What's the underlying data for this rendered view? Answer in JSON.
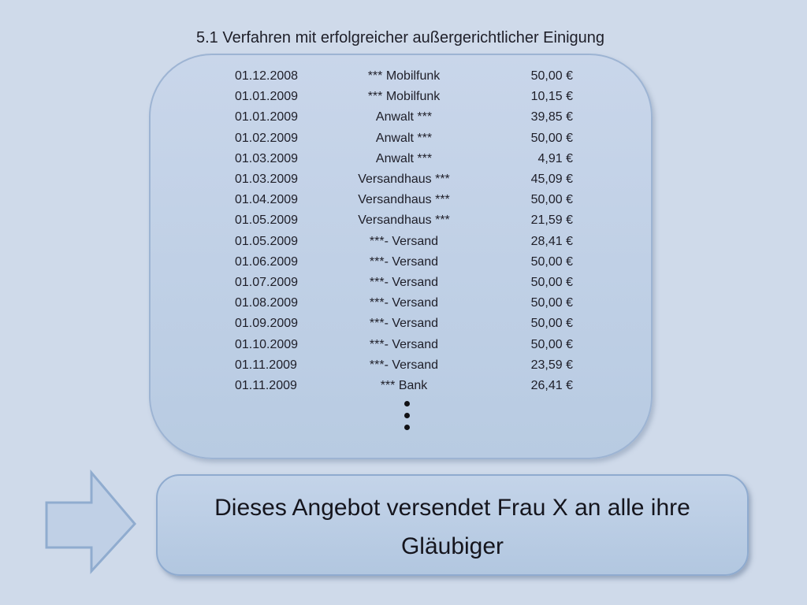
{
  "slide_title": "5.1 Verfahren mit erfolgreicher außergerichtlicher Einigung",
  "payments_box": {
    "rows": [
      {
        "date": "01.12.2008",
        "creditor": "*** Mobilfunk",
        "amount": "50,00 €"
      },
      {
        "date": "01.01.2009",
        "creditor": "*** Mobilfunk",
        "amount": "10,15 €"
      },
      {
        "date": "01.01.2009",
        "creditor": "Anwalt ***",
        "amount": "39,85 €"
      },
      {
        "date": "01.02.2009",
        "creditor": "Anwalt ***",
        "amount": "50,00 €"
      },
      {
        "date": "01.03.2009",
        "creditor": "Anwalt ***",
        "amount": "4,91 €"
      },
      {
        "date": "01.03.2009",
        "creditor": "Versandhaus ***",
        "amount": "45,09 €"
      },
      {
        "date": "01.04.2009",
        "creditor": "Versandhaus ***",
        "amount": "50,00 €"
      },
      {
        "date": "01.05.2009",
        "creditor": "Versandhaus ***",
        "amount": "21,59 €"
      },
      {
        "date": "01.05.2009",
        "creditor": "***- Versand",
        "amount": "28,41 €"
      },
      {
        "date": "01.06.2009",
        "creditor": "***- Versand",
        "amount": "50,00 €"
      },
      {
        "date": "01.07.2009",
        "creditor": "***- Versand",
        "amount": "50,00 €"
      },
      {
        "date": "01.08.2009",
        "creditor": "***- Versand",
        "amount": "50,00 €"
      },
      {
        "date": "01.09.2009",
        "creditor": "***- Versand",
        "amount": "50,00 €"
      },
      {
        "date": "01.10.2009",
        "creditor": "***- Versand",
        "amount": "50,00 €"
      },
      {
        "date": "01.11.2009",
        "creditor": "***- Versand",
        "amount": "23,59 €"
      },
      {
        "date": "01.11.2009",
        "creditor": "*** Bank",
        "amount": "26,41 €"
      }
    ],
    "truncation_icon": "vertical-ellipsis"
  },
  "callout": {
    "lines": [
      "Dieses Angebot versendet Frau X an alle ihre",
      "Gläubiger"
    ]
  },
  "icons": {
    "arrow": "right-block-arrow"
  },
  "colors": {
    "background": "#cfdaea",
    "box_fill_top": "#c9d6ea",
    "box_fill_bottom": "#b8cbe2",
    "box_border": "#9db4d3",
    "callout_fill_top": "#c4d4e9",
    "callout_fill_bottom": "#b2c7e0",
    "callout_border": "#8fabcf",
    "arrow_fill": "#c0d0e6",
    "arrow_border": "#90accf",
    "text": "#1e1e28"
  }
}
